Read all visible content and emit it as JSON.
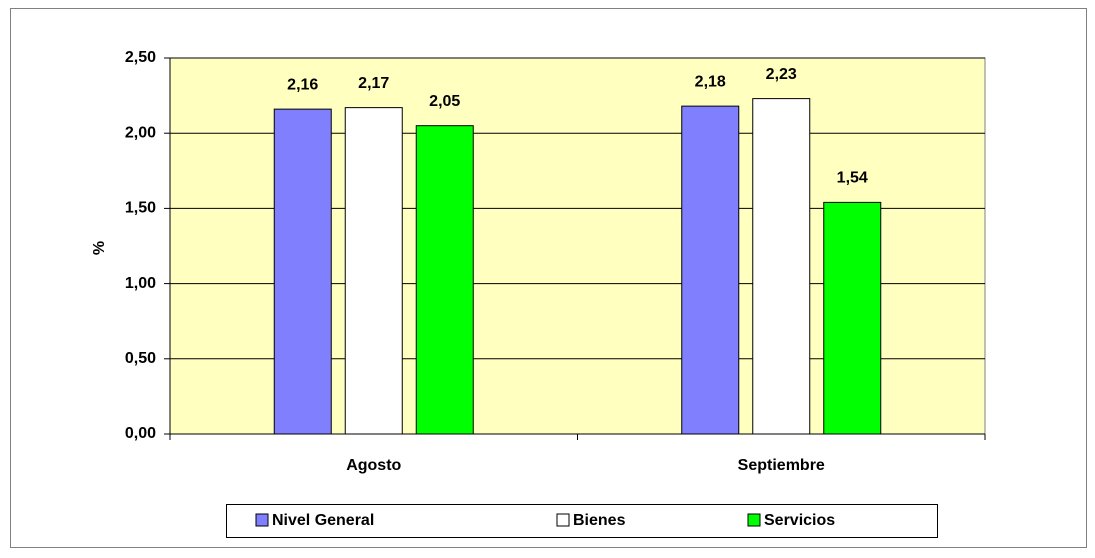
{
  "chart_data": {
    "type": "bar",
    "y_label": "%",
    "categories": [
      "Agosto",
      "Septiembre"
    ],
    "series": [
      {
        "name": "Nivel General",
        "color": "#8080ff",
        "values": [
          2.16,
          2.18
        ],
        "value_labels": [
          "2,16",
          "2,18"
        ]
      },
      {
        "name": "Bienes",
        "color": "#ffffff",
        "values": [
          2.17,
          2.23
        ],
        "value_labels": [
          "2,17",
          "2,23"
        ]
      },
      {
        "name": "Servicios",
        "color": "#00ff00",
        "values": [
          2.05,
          1.54
        ],
        "value_labels": [
          "2,05",
          "1,54"
        ]
      }
    ],
    "ylim": [
      0,
      2.5
    ],
    "yticks": [
      {
        "value": 0,
        "label": "0,00"
      },
      {
        "value": 0.5,
        "label": "0,50"
      },
      {
        "value": 1,
        "label": "1,00"
      },
      {
        "value": 1.5,
        "label": "1,50"
      },
      {
        "value": 2,
        "label": "2,00"
      },
      {
        "value": 2.5,
        "label": "2,50"
      }
    ],
    "grid": true,
    "plot_background": "#ffffc0",
    "legend": "bottom"
  }
}
